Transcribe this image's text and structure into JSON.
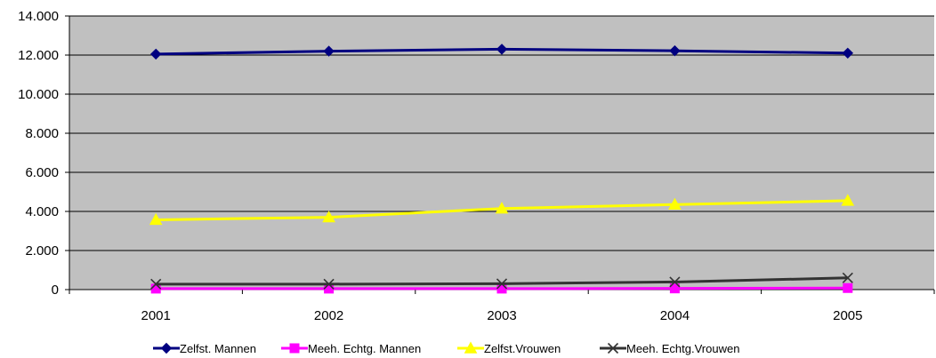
{
  "chart_data": {
    "type": "line",
    "title": "",
    "xlabel": "",
    "ylabel": "",
    "categories": [
      "2001",
      "2002",
      "2003",
      "2004",
      "2005"
    ],
    "ylim": [
      0,
      14000
    ],
    "yticks": [
      0,
      2000,
      4000,
      6000,
      8000,
      10000,
      12000,
      14000
    ],
    "ytick_labels": [
      "0",
      "2.000",
      "4.000",
      "6.000",
      "8.000",
      "10.000",
      "12.000",
      "14.000"
    ],
    "grid": "horizontal",
    "plot_background": "#c0c0c0",
    "legend_position": "bottom",
    "series": [
      {
        "name": "Zelfst. Mannen",
        "values": [
          12050,
          12200,
          12300,
          12220,
          12100
        ],
        "color": "#000080",
        "marker": "diamond"
      },
      {
        "name": "Meeh. Echtg. Mannen",
        "values": [
          50,
          50,
          50,
          60,
          80
        ],
        "color": "#ff00ff",
        "marker": "square"
      },
      {
        "name": "Zelfst.Vrouwen",
        "values": [
          3570,
          3700,
          4150,
          4350,
          4550
        ],
        "color": "#ffff00",
        "marker": "triangle"
      },
      {
        "name": "Meeh. Echtg.Vrouwen",
        "values": [
          280,
          280,
          300,
          390,
          600
        ],
        "color": "#333333",
        "marker": "x"
      }
    ]
  }
}
